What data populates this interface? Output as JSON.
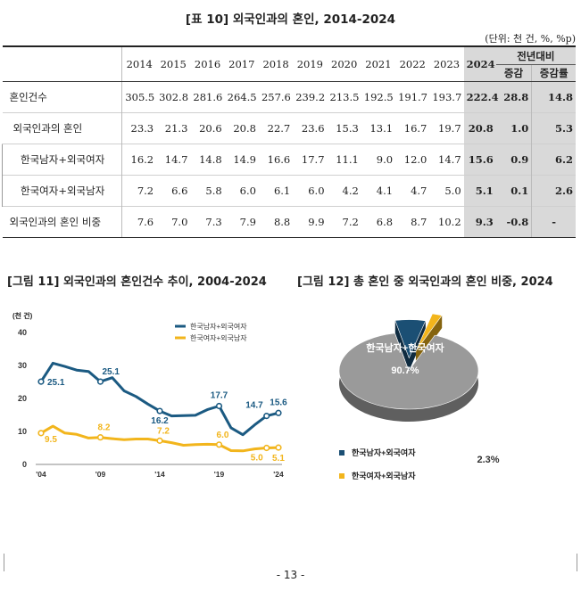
{
  "table": {
    "title": "[표 10] 외국인과의 혼인, 2014-2024",
    "unit_note": "(단위: 천 건, %, %p)",
    "years": [
      "2014",
      "2015",
      "2016",
      "2017",
      "2018",
      "2019",
      "2020",
      "2021",
      "2022",
      "2023",
      "2024"
    ],
    "yoy_header": "전년대비",
    "yoy_sub": [
      "증감",
      "증감률"
    ],
    "rows": [
      {
        "label": "혼인건수",
        "values": [
          "305.5",
          "302.8",
          "281.6",
          "264.5",
          "257.6",
          "239.2",
          "213.5",
          "192.5",
          "191.7",
          "193.7",
          "222.4"
        ],
        "change": "28.8",
        "rate": "14.8"
      },
      {
        "label": "외국인과의 혼인",
        "values": [
          "23.3",
          "21.3",
          "20.6",
          "20.8",
          "22.7",
          "23.6",
          "15.3",
          "13.1",
          "16.7",
          "19.7",
          "20.8"
        ],
        "change": "1.0",
        "rate": "5.3"
      },
      {
        "label": "한국남자+외국여자",
        "values": [
          "16.2",
          "14.7",
          "14.8",
          "14.9",
          "16.6",
          "17.7",
          "11.1",
          "9.0",
          "12.0",
          "14.7",
          "15.6"
        ],
        "change": "0.9",
        "rate": "6.2"
      },
      {
        "label": "한국여자+외국남자",
        "values": [
          "7.2",
          "6.6",
          "5.8",
          "6.0",
          "6.1",
          "6.0",
          "4.2",
          "4.1",
          "4.7",
          "5.0",
          "5.1"
        ],
        "change": "0.1",
        "rate": "2.6"
      },
      {
        "label": "외국인과의 혼인 비중",
        "values": [
          "7.6",
          "7.0",
          "7.3",
          "7.9",
          "8.8",
          "9.9",
          "7.2",
          "6.8",
          "8.7",
          "10.2",
          "9.3"
        ],
        "change": "-0.8",
        "rate": "-"
      }
    ]
  },
  "fig11": {
    "title": "[그림 11] 외국인과의 혼인건수 추이, 2004-2024"
  },
  "fig12": {
    "title": "[그림 12] 총 혼인 중 외국인과의 혼인 비중, 2024"
  },
  "chart_data": [
    {
      "type": "line",
      "ylabel": "(천 건)",
      "ylim": [
        0,
        40
      ],
      "yticks": [
        "0",
        "10",
        "20",
        "30",
        "40"
      ],
      "xticks": [
        {
          "label": "'04",
          "year": 2004
        },
        {
          "label": "'09",
          "year": 2009
        },
        {
          "label": "'14",
          "year": 2014
        },
        {
          "label": "'19",
          "year": 2019
        },
        {
          "label": "'24",
          "year": 2024
        }
      ],
      "legend_placement": "top-right",
      "series": [
        {
          "name": "한국남자+외국여자",
          "color": "#1b5a82",
          "x": [
            2004,
            2005,
            2006,
            2007,
            2008,
            2009,
            2010,
            2011,
            2012,
            2013,
            2014,
            2015,
            2016,
            2017,
            2018,
            2019,
            2020,
            2021,
            2022,
            2023,
            2024
          ],
          "values": [
            25.1,
            30.7,
            29.7,
            28.6,
            28.2,
            25.1,
            26.3,
            22.3,
            20.6,
            18.3,
            16.2,
            14.7,
            14.8,
            14.9,
            16.6,
            17.7,
            11.1,
            9.0,
            12.0,
            14.7,
            15.6
          ],
          "labels": [
            {
              "year": 2004,
              "text": "25.1"
            },
            {
              "year": 2009,
              "text": "25.1"
            },
            {
              "year": 2014,
              "text": "16.2"
            },
            {
              "year": 2019,
              "text": "17.7"
            },
            {
              "year": 2023,
              "text": "14.7"
            },
            {
              "year": 2024,
              "text": "15.6"
            }
          ]
        },
        {
          "name": "한국여자+외국남자",
          "color": "#f2b51c",
          "x": [
            2004,
            2005,
            2006,
            2007,
            2008,
            2009,
            2010,
            2011,
            2012,
            2013,
            2014,
            2015,
            2016,
            2017,
            2018,
            2019,
            2020,
            2021,
            2022,
            2023,
            2024
          ],
          "values": [
            9.5,
            11.6,
            9.5,
            9.1,
            8.0,
            8.2,
            7.8,
            7.5,
            7.7,
            7.7,
            7.2,
            6.6,
            5.8,
            6.0,
            6.1,
            6.0,
            4.2,
            4.1,
            4.7,
            5.0,
            5.1
          ],
          "labels": [
            {
              "year": 2004,
              "text": "9.5"
            },
            {
              "year": 2009,
              "text": "8.2"
            },
            {
              "year": 2014,
              "text": "7.2"
            },
            {
              "year": 2019,
              "text": "6.0"
            },
            {
              "year": 2023,
              "text": "5.0"
            },
            {
              "year": 2024,
              "text": "5.1"
            }
          ]
        }
      ]
    },
    {
      "type": "pie",
      "slices": [
        {
          "name": "한국남자+한국여자",
          "value": 90.7,
          "label": "90.7%",
          "color": "#9a9a9a"
        },
        {
          "name": "한국남자+외국여자",
          "value": 7.0,
          "label": "7.0%",
          "color": "#1b4f74"
        },
        {
          "name": "한국여자+외국남자",
          "value": 2.3,
          "label": "2.3%",
          "color": "#f2b51c"
        }
      ],
      "legend": [
        "한국남자+외국여자",
        "한국여자+외국남자"
      ]
    }
  ],
  "footer": {
    "page": "- 13 -"
  }
}
